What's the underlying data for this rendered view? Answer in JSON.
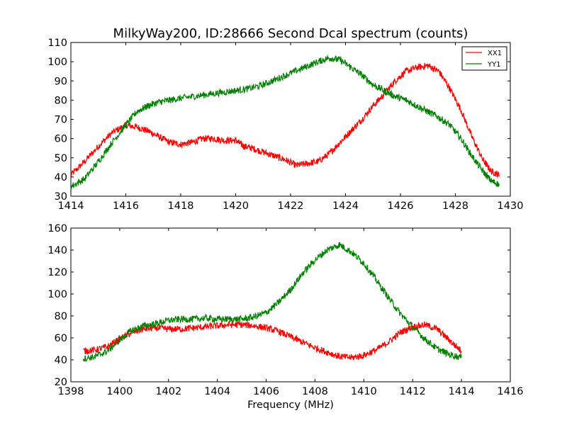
{
  "chart_data": [
    {
      "type": "line",
      "title": "MilkyWay200, ID:28666 Second Dcal spectrum (counts)",
      "xlabel": "",
      "ylabel": "",
      "xlim": [
        1414,
        1430
      ],
      "ylim": [
        30,
        110
      ],
      "xticks": [
        1414,
        1416,
        1418,
        1420,
        1422,
        1424,
        1426,
        1428,
        1430
      ],
      "yticks": [
        30,
        40,
        50,
        60,
        70,
        80,
        90,
        100,
        110
      ],
      "legend": {
        "placement": "top-right",
        "entries": [
          "XX1",
          "YY1"
        ]
      },
      "grid": false,
      "series": [
        {
          "name": "XX1",
          "color": "#ff0000",
          "x": [
            1414.0,
            1414.5,
            1415.0,
            1415.5,
            1416.0,
            1416.4,
            1416.8,
            1417.2,
            1417.6,
            1418.0,
            1418.4,
            1418.8,
            1419.2,
            1419.6,
            1420.0,
            1420.3,
            1420.6,
            1421.0,
            1421.4,
            1421.8,
            1422.2,
            1422.6,
            1423.0,
            1423.4,
            1423.8,
            1424.2,
            1424.6,
            1425.0,
            1425.4,
            1425.8,
            1426.2,
            1426.6,
            1427.0,
            1427.4,
            1427.8,
            1428.2,
            1428.6,
            1429.0,
            1429.3,
            1429.6
          ],
          "y": [
            41,
            48,
            56,
            63,
            67,
            66,
            64,
            61,
            58,
            57,
            58,
            60,
            60,
            59,
            59,
            56,
            55,
            53,
            51,
            49,
            46,
            47,
            48,
            52,
            58,
            64,
            70,
            77,
            83,
            90,
            95,
            97,
            98,
            95,
            86,
            75,
            61,
            49,
            43,
            41
          ]
        },
        {
          "name": "YY1",
          "color": "#008000",
          "x": [
            1414.0,
            1414.5,
            1415.0,
            1415.5,
            1416.0,
            1416.4,
            1416.8,
            1417.2,
            1417.6,
            1418.0,
            1418.5,
            1419.0,
            1419.5,
            1420.0,
            1420.5,
            1421.0,
            1421.5,
            1422.0,
            1422.5,
            1423.0,
            1423.4,
            1423.8,
            1424.2,
            1424.6,
            1425.0,
            1425.4,
            1425.8,
            1426.2,
            1426.6,
            1427.0,
            1427.4,
            1427.8,
            1428.2,
            1428.6,
            1429.0,
            1429.3,
            1429.6
          ],
          "y": [
            35,
            39,
            48,
            58,
            67,
            74,
            77,
            79,
            80,
            81,
            82,
            83,
            84,
            85,
            86,
            88,
            91,
            94,
            97,
            100,
            102,
            101,
            97,
            93,
            88,
            85,
            82,
            80,
            77,
            74,
            71,
            67,
            60,
            51,
            43,
            38,
            36
          ]
        }
      ]
    },
    {
      "type": "line",
      "title": "",
      "xlabel": "Frequency (MHz)",
      "ylabel": "",
      "xlim": [
        1398,
        1416
      ],
      "ylim": [
        20,
        160
      ],
      "xticks": [
        1398,
        1400,
        1402,
        1404,
        1406,
        1408,
        1410,
        1412,
        1414,
        1416
      ],
      "yticks": [
        20,
        40,
        60,
        80,
        100,
        120,
        140,
        160
      ],
      "grid": false,
      "series": [
        {
          "color": "#ff0000",
          "x": [
            1398.5,
            1399.0,
            1399.5,
            1400.0,
            1400.5,
            1401.0,
            1401.5,
            1402.0,
            1402.5,
            1403.0,
            1403.5,
            1404.0,
            1404.5,
            1405.0,
            1405.5,
            1406.0,
            1406.5,
            1407.0,
            1407.5,
            1408.0,
            1408.5,
            1409.0,
            1409.5,
            1410.0,
            1410.5,
            1411.0,
            1411.5,
            1412.0,
            1412.5,
            1413.0,
            1413.5,
            1414.0
          ],
          "y": [
            48,
            49,
            52,
            59,
            65,
            68,
            69,
            68,
            68,
            69,
            70,
            71,
            72,
            72,
            71,
            69,
            66,
            61,
            56,
            51,
            47,
            43,
            42,
            44,
            49,
            56,
            65,
            70,
            72,
            68,
            58,
            48
          ]
        },
        {
          "color": "#008000",
          "x": [
            1398.5,
            1399.0,
            1399.5,
            1400.0,
            1400.5,
            1401.0,
            1401.5,
            1402.0,
            1402.5,
            1403.0,
            1403.5,
            1404.0,
            1404.5,
            1405.0,
            1405.5,
            1406.0,
            1406.5,
            1407.0,
            1407.5,
            1408.0,
            1408.5,
            1409.0,
            1409.5,
            1410.0,
            1410.5,
            1411.0,
            1411.5,
            1412.0,
            1412.5,
            1413.0,
            1413.5,
            1414.0
          ],
          "y": [
            41,
            43,
            48,
            58,
            67,
            71,
            73,
            76,
            77,
            77,
            78,
            77,
            77,
            77,
            79,
            83,
            92,
            104,
            119,
            131,
            140,
            145,
            138,
            128,
            113,
            97,
            82,
            70,
            59,
            50,
            45,
            42
          ]
        }
      ]
    }
  ]
}
